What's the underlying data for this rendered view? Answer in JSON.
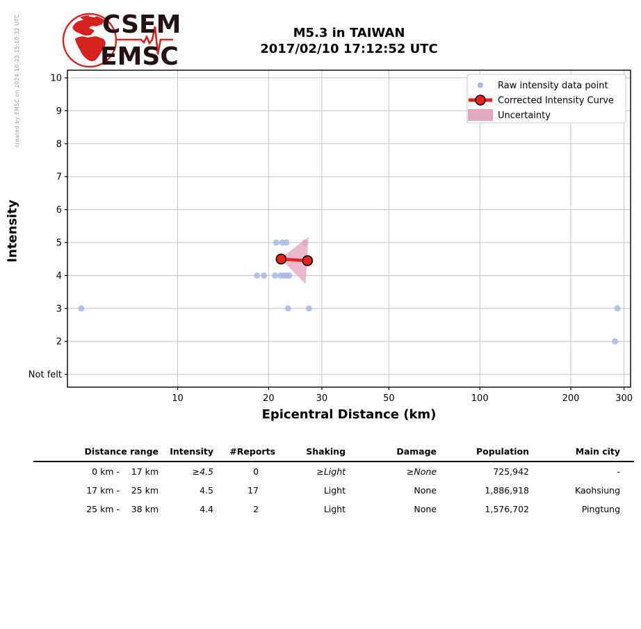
{
  "page": {
    "created_by": "created by EMSC on 2024-10-23 15:10:32 UTC"
  },
  "logo": {
    "top": "CSEM",
    "bottom": "EMSC"
  },
  "colors": {
    "raw_point": "#a8b9e8",
    "curve": "#e8221e",
    "curve_marker_edge": "#000000",
    "uncertainty": "#e3a7c0",
    "grid": "#c6c6c6",
    "spine": "#000000",
    "legend_border": "#cccccc",
    "logo_red": "#d6221e",
    "logo_text": "#241212",
    "created_by_gray": "#999999"
  },
  "chart_data": {
    "type": "scatter",
    "title": "M5.3 in TAIWAN",
    "subtitle": "2017/02/10 17:12:52 UTC",
    "xlabel": "Epicentral Distance (km)",
    "ylabel": "Intensity",
    "x_scale": "log",
    "grid": true,
    "x_ticks": [
      10,
      20,
      30,
      50,
      100,
      200,
      300
    ],
    "x_range_km": [
      4.3,
      315
    ],
    "y_ticks": [
      {
        "value": 1,
        "label": "Not felt"
      },
      {
        "value": 2,
        "label": "2"
      },
      {
        "value": 3,
        "label": "3"
      },
      {
        "value": 4,
        "label": "4"
      },
      {
        "value": 5,
        "label": "5"
      },
      {
        "value": 6,
        "label": "6"
      },
      {
        "value": 7,
        "label": "7"
      },
      {
        "value": 8,
        "label": "8"
      },
      {
        "value": 9,
        "label": "9"
      },
      {
        "value": 10,
        "label": "10"
      }
    ],
    "y_range": [
      0.6,
      10.2
    ],
    "legend": [
      {
        "label": "Raw intensity data point",
        "marker": "dot"
      },
      {
        "label": "Corrected Intensity Curve",
        "marker": "line-marker"
      },
      {
        "label": "Uncertainty",
        "marker": "patch"
      }
    ],
    "legend_position": "upper right",
    "raw_points": [
      {
        "distance_km": 4.8,
        "intensity": 3
      },
      {
        "distance_km": 18.3,
        "intensity": 4
      },
      {
        "distance_km": 19.3,
        "intensity": 4
      },
      {
        "distance_km": 21.0,
        "intensity": 4
      },
      {
        "distance_km": 21.9,
        "intensity": 4
      },
      {
        "distance_km": 22.4,
        "intensity": 4
      },
      {
        "distance_km": 22.9,
        "intensity": 4
      },
      {
        "distance_km": 23.4,
        "intensity": 4
      },
      {
        "distance_km": 21.2,
        "intensity": 5
      },
      {
        "distance_km": 22.2,
        "intensity": 5
      },
      {
        "distance_km": 22.9,
        "intensity": 5
      },
      {
        "distance_km": 26.4,
        "intensity": 5
      },
      {
        "distance_km": 23.2,
        "intensity": 3
      },
      {
        "distance_km": 27.2,
        "intensity": 3
      },
      {
        "distance_km": 285,
        "intensity": 3
      },
      {
        "distance_km": 280,
        "intensity": 2
      }
    ],
    "corrected_curve": [
      {
        "distance_km": 22.0,
        "intensity": 4.5
      },
      {
        "distance_km": 26.9,
        "intensity": 4.45
      }
    ],
    "uncertainty_polygon": [
      [
        21.9,
        4.52
      ],
      [
        27.1,
        5.17
      ],
      [
        26.5,
        3.74
      ]
    ]
  },
  "table": {
    "headers": {
      "distance_range": "Distance range",
      "intensity": "Intensity",
      "reports": "#Reports",
      "shaking": "Shaking",
      "damage": "Damage",
      "population": "Population",
      "main_city": "Main city"
    },
    "rows": [
      {
        "range_from": "0 km -",
        "range_to": "17 km",
        "intensity": "≥4.5",
        "reports": "0",
        "shaking": "≥Light",
        "damage": "≥None",
        "population": "725,942",
        "main_city": "-",
        "estimated": true
      },
      {
        "range_from": "17 km -",
        "range_to": "25 km",
        "intensity": "4.5",
        "reports": "17",
        "shaking": "Light",
        "damage": "None",
        "population": "1,886,918",
        "main_city": "Kaohsiung",
        "estimated": false
      },
      {
        "range_from": "25 km -",
        "range_to": "38 km",
        "intensity": "4.4",
        "reports": "2",
        "shaking": "Light",
        "damage": "None",
        "population": "1,576,702",
        "main_city": "Pingtung",
        "estimated": false
      }
    ]
  }
}
